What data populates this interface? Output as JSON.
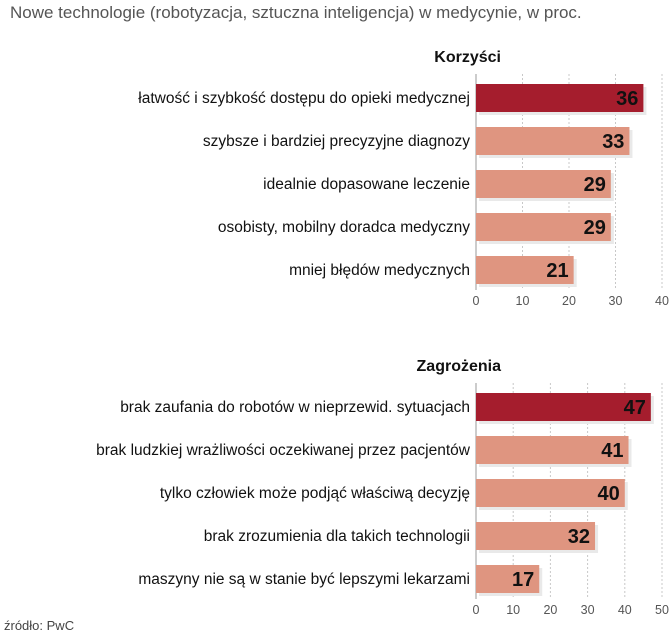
{
  "title": "Nowe technologie (robotyzacja, sztuczna inteligencja) w medycynie, w proc.",
  "source": "źródło: PwC",
  "colors": {
    "highlight": "#a51d2d",
    "normal": "#df9580",
    "shadow": "#e9e9e9"
  },
  "chart_data": [
    {
      "type": "bar",
      "title": "Korzyści",
      "categories": [
        "łatwość i szybkość dostępu do opieki medycznej",
        "szybsze i bardziej precyzyjne diagnozy",
        "idealnie dopasowane leczenie",
        "osobisty, mobilny doradca medyczny",
        "mniej błędów medycznych"
      ],
      "values": [
        36,
        33,
        29,
        29,
        21
      ],
      "xlim": [
        0,
        40
      ],
      "ticks": [
        0,
        10,
        20,
        30,
        40
      ],
      "highlight_index": 0,
      "xlabel": "",
      "ylabel": ""
    },
    {
      "type": "bar",
      "title": "Zagrożenia",
      "categories": [
        "brak zaufania do robotów w nieprzewid. sytuacjach",
        "brak ludzkiej wrażliwości oczekiwanej przez pacjentów",
        "tylko człowiek może podjąć właściwą decyzję",
        "brak zrozumienia dla takich technologii",
        "maszyny nie są w stanie być lepszymi lekarzami"
      ],
      "values": [
        47,
        41,
        40,
        32,
        17
      ],
      "xlim": [
        0,
        50
      ],
      "ticks": [
        0,
        10,
        20,
        30,
        40,
        50
      ],
      "highlight_index": 0,
      "xlabel": "",
      "ylabel": ""
    }
  ]
}
